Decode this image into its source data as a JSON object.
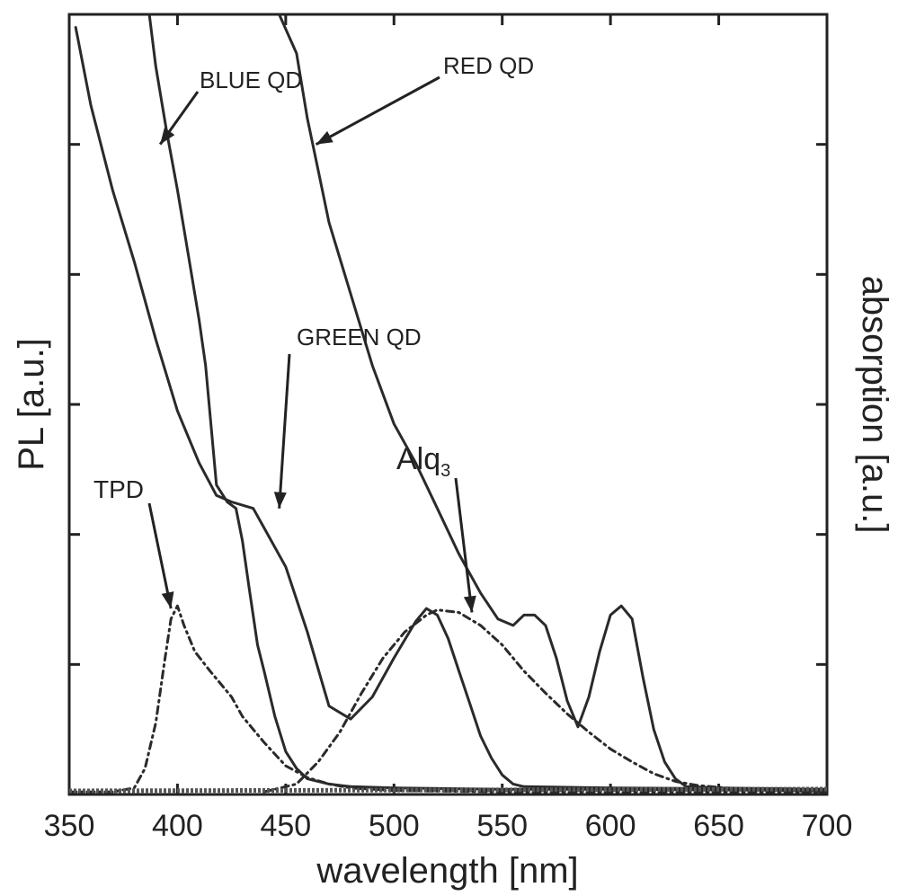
{
  "chart_data": {
    "type": "line",
    "xlabel": "wavelength [nm]",
    "ylabel_left": "PL [a.u.]",
    "ylabel_right": "absorption [a.u.]",
    "xlim": [
      350,
      700
    ],
    "ylim": [
      0,
      6
    ],
    "x_ticks": [
      350,
      400,
      450,
      500,
      550,
      600,
      650,
      700
    ],
    "y_ticks": [
      1,
      2,
      3,
      4,
      5
    ],
    "y_ticks_labeled": false,
    "grid": false,
    "series": [
      {
        "name": "BLUE QD",
        "kind": "absorption",
        "style": "solid",
        "color": "#2a2a2a",
        "points": [
          [
            387,
            6.0
          ],
          [
            390,
            5.6
          ],
          [
            395,
            5.1
          ],
          [
            400,
            4.65
          ],
          [
            405,
            4.15
          ],
          [
            410,
            3.65
          ],
          [
            413,
            3.3
          ],
          [
            418,
            2.38
          ],
          [
            423,
            2.25
          ],
          [
            427,
            2.2
          ],
          [
            430,
            1.95
          ],
          [
            433,
            1.6
          ],
          [
            437,
            1.15
          ],
          [
            440,
            0.95
          ],
          [
            445,
            0.6
          ],
          [
            450,
            0.33
          ],
          [
            455,
            0.2
          ],
          [
            460,
            0.12
          ],
          [
            470,
            0.08
          ],
          [
            480,
            0.06
          ],
          [
            500,
            0.05
          ],
          [
            550,
            0.04
          ],
          [
            600,
            0.04
          ],
          [
            700,
            0.03
          ]
        ]
      },
      {
        "name": "GREEN QD",
        "kind": "absorption",
        "style": "solid",
        "color": "#2a2a2a",
        "points": [
          [
            353,
            5.9
          ],
          [
            360,
            5.3
          ],
          [
            370,
            4.65
          ],
          [
            380,
            4.1
          ],
          [
            390,
            3.5
          ],
          [
            400,
            2.95
          ],
          [
            410,
            2.55
          ],
          [
            418,
            2.3
          ],
          [
            425,
            2.25
          ],
          [
            435,
            2.2
          ],
          [
            440,
            2.05
          ],
          [
            450,
            1.75
          ],
          [
            460,
            1.25
          ],
          [
            470,
            0.68
          ],
          [
            480,
            0.58
          ],
          [
            490,
            0.75
          ],
          [
            500,
            1.05
          ],
          [
            510,
            1.33
          ],
          [
            515,
            1.43
          ],
          [
            520,
            1.38
          ],
          [
            525,
            1.2
          ],
          [
            530,
            0.95
          ],
          [
            535,
            0.7
          ],
          [
            540,
            0.45
          ],
          [
            545,
            0.28
          ],
          [
            550,
            0.15
          ],
          [
            555,
            0.08
          ],
          [
            560,
            0.06
          ],
          [
            600,
            0.05
          ],
          [
            700,
            0.04
          ]
        ]
      },
      {
        "name": "RED QD",
        "kind": "absorption",
        "style": "solid",
        "color": "#2a2a2a",
        "points": [
          [
            447,
            6.0
          ],
          [
            455,
            5.7
          ],
          [
            460,
            5.2
          ],
          [
            465,
            4.8
          ],
          [
            470,
            4.4
          ],
          [
            480,
            3.85
          ],
          [
            490,
            3.3
          ],
          [
            500,
            2.85
          ],
          [
            510,
            2.55
          ],
          [
            520,
            2.2
          ],
          [
            530,
            1.85
          ],
          [
            540,
            1.55
          ],
          [
            548,
            1.35
          ],
          [
            555,
            1.3
          ],
          [
            560,
            1.38
          ],
          [
            565,
            1.38
          ],
          [
            570,
            1.3
          ],
          [
            575,
            1.05
          ],
          [
            580,
            0.72
          ],
          [
            585,
            0.52
          ],
          [
            590,
            0.75
          ],
          [
            595,
            1.1
          ],
          [
            600,
            1.38
          ],
          [
            605,
            1.45
          ],
          [
            610,
            1.35
          ],
          [
            615,
            0.9
          ],
          [
            620,
            0.5
          ],
          [
            625,
            0.25
          ],
          [
            630,
            0.12
          ],
          [
            635,
            0.06
          ],
          [
            650,
            0.05
          ],
          [
            700,
            0.04
          ]
        ]
      },
      {
        "name": "TPD",
        "kind": "PL",
        "style": "dashed",
        "color": "#2a2a2a",
        "points": [
          [
            350,
            0.02
          ],
          [
            370,
            0.02
          ],
          [
            380,
            0.05
          ],
          [
            385,
            0.2
          ],
          [
            390,
            0.55
          ],
          [
            394,
            1.02
          ],
          [
            397,
            1.35
          ],
          [
            400,
            1.45
          ],
          [
            403,
            1.3
          ],
          [
            408,
            1.1
          ],
          [
            415,
            0.95
          ],
          [
            420,
            0.85
          ],
          [
            425,
            0.75
          ],
          [
            430,
            0.6
          ],
          [
            440,
            0.4
          ],
          [
            450,
            0.22
          ],
          [
            460,
            0.13
          ],
          [
            470,
            0.08
          ],
          [
            480,
            0.05
          ],
          [
            500,
            0.03
          ],
          [
            550,
            0.02
          ],
          [
            700,
            0.02
          ]
        ]
      },
      {
        "name": "Alq3",
        "kind": "PL",
        "style": "dashed",
        "color": "#2a2a2a",
        "points": [
          [
            440,
            0.02
          ],
          [
            455,
            0.08
          ],
          [
            465,
            0.25
          ],
          [
            475,
            0.48
          ],
          [
            485,
            0.78
          ],
          [
            495,
            1.05
          ],
          [
            505,
            1.25
          ],
          [
            515,
            1.38
          ],
          [
            520,
            1.42
          ],
          [
            530,
            1.4
          ],
          [
            540,
            1.3
          ],
          [
            550,
            1.15
          ],
          [
            560,
            0.95
          ],
          [
            570,
            0.78
          ],
          [
            580,
            0.62
          ],
          [
            590,
            0.48
          ],
          [
            600,
            0.35
          ],
          [
            610,
            0.25
          ],
          [
            620,
            0.16
          ],
          [
            630,
            0.1
          ],
          [
            640,
            0.07
          ],
          [
            660,
            0.04
          ],
          [
            700,
            0.02
          ]
        ]
      }
    ],
    "annotations": [
      {
        "text": "BLUE QD",
        "anchor_x": 392,
        "anchor_y": 5.0
      },
      {
        "text": "GREEN QD",
        "anchor_x": 447,
        "anchor_y": 2.2
      },
      {
        "text": "RED QD",
        "anchor_x": 464,
        "anchor_y": 5.0
      },
      {
        "text": "TPD",
        "anchor_x": 397,
        "anchor_y": 1.43
      },
      {
        "text": "Alq",
        "subscript": "3",
        "anchor_x": 536,
        "anchor_y": 1.4
      }
    ]
  }
}
